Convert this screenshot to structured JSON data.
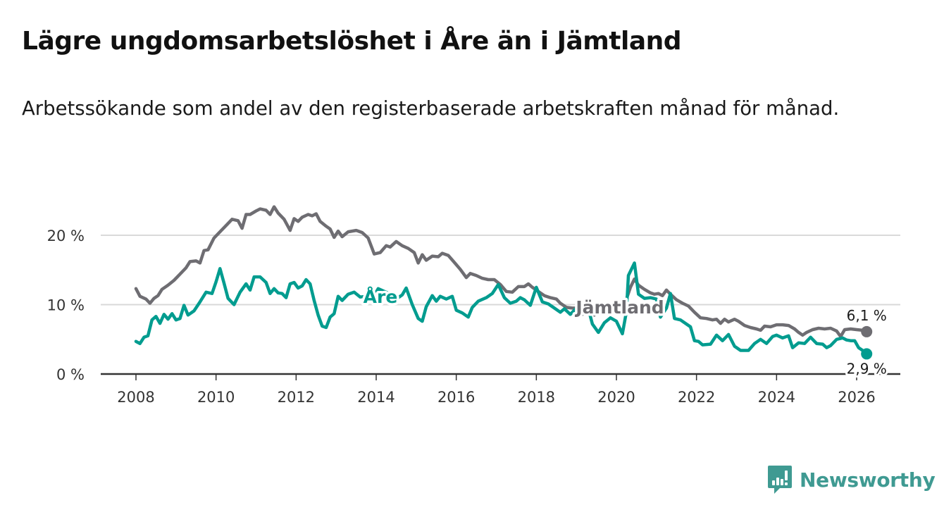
{
  "header": {
    "title": "Lägre ungdomsarbetslöshet i Åre än i Jämtland",
    "subtitle": "Arbetssökande som andel av den registerbaserade arbetskraften månad för månad."
  },
  "brand": {
    "name": "Newsworthy",
    "color": "#3f9a92"
  },
  "chart_data": {
    "type": "line",
    "title": "Lägre ungdomsarbetslöshet i Åre än i Jämtland",
    "subtitle": "Arbetssökande som andel av den registerbaserade arbetskraften månad för månad.",
    "xlabel": "",
    "ylabel": "",
    "xlim": [
      2007.75,
      2026.95
    ],
    "ylim": [
      0,
      25
    ],
    "x_ticks": [
      2008,
      2010,
      2012,
      2014,
      2016,
      2018,
      2020,
      2022,
      2024,
      2026
    ],
    "x_tick_labels": [
      "2008",
      "2010",
      "2012",
      "2014",
      "2016",
      "2018",
      "2020",
      "2022",
      "2024",
      "2026"
    ],
    "y_ticks": [
      0,
      10,
      20
    ],
    "y_tick_labels": [
      "0 %",
      "10 %",
      "20 %"
    ],
    "grid": "horizontal",
    "legend": "inline labels",
    "series": [
      {
        "name": "Jämtland",
        "label": "Jämtland",
        "color": "#6e6d72",
        "end_label": "6,1 %",
        "end_value": 6.1,
        "points": [
          [
            2008.0,
            12.3
          ],
          [
            2008.1,
            11.2
          ],
          [
            2008.25,
            10.8
          ],
          [
            2008.35,
            10.2
          ],
          [
            2008.45,
            10.9
          ],
          [
            2008.55,
            11.3
          ],
          [
            2008.65,
            12.2
          ],
          [
            2008.8,
            12.8
          ],
          [
            2008.95,
            13.5
          ],
          [
            2009.1,
            14.4
          ],
          [
            2009.25,
            15.3
          ],
          [
            2009.35,
            16.2
          ],
          [
            2009.5,
            16.3
          ],
          [
            2009.6,
            16.0
          ],
          [
            2009.7,
            17.8
          ],
          [
            2009.8,
            17.9
          ],
          [
            2009.95,
            19.6
          ],
          [
            2010.1,
            20.5
          ],
          [
            2010.25,
            21.4
          ],
          [
            2010.4,
            22.3
          ],
          [
            2010.55,
            22.1
          ],
          [
            2010.65,
            21.0
          ],
          [
            2010.75,
            23.0
          ],
          [
            2010.85,
            23.0
          ],
          [
            2011.0,
            23.5
          ],
          [
            2011.1,
            23.8
          ],
          [
            2011.25,
            23.6
          ],
          [
            2011.35,
            23.0
          ],
          [
            2011.45,
            24.1
          ],
          [
            2011.55,
            23.2
          ],
          [
            2011.7,
            22.3
          ],
          [
            2011.85,
            20.7
          ],
          [
            2011.95,
            22.4
          ],
          [
            2012.05,
            22.0
          ],
          [
            2012.15,
            22.6
          ],
          [
            2012.3,
            23.0
          ],
          [
            2012.4,
            22.8
          ],
          [
            2012.5,
            23.1
          ],
          [
            2012.6,
            22.0
          ],
          [
            2012.75,
            21.3
          ],
          [
            2012.85,
            20.9
          ],
          [
            2012.95,
            19.7
          ],
          [
            2013.05,
            20.6
          ],
          [
            2013.15,
            19.8
          ],
          [
            2013.3,
            20.5
          ],
          [
            2013.5,
            20.7
          ],
          [
            2013.65,
            20.4
          ],
          [
            2013.8,
            19.6
          ],
          [
            2013.95,
            17.3
          ],
          [
            2014.1,
            17.5
          ],
          [
            2014.25,
            18.5
          ],
          [
            2014.35,
            18.3
          ],
          [
            2014.5,
            19.1
          ],
          [
            2014.65,
            18.5
          ],
          [
            2014.8,
            18.1
          ],
          [
            2014.95,
            17.5
          ],
          [
            2015.05,
            16.0
          ],
          [
            2015.15,
            17.2
          ],
          [
            2015.25,
            16.4
          ],
          [
            2015.4,
            17.0
          ],
          [
            2015.55,
            16.9
          ],
          [
            2015.65,
            17.4
          ],
          [
            2015.8,
            17.1
          ],
          [
            2015.95,
            16.1
          ],
          [
            2016.1,
            15.1
          ],
          [
            2016.25,
            13.9
          ],
          [
            2016.35,
            14.5
          ],
          [
            2016.5,
            14.2
          ],
          [
            2016.65,
            13.8
          ],
          [
            2016.8,
            13.6
          ],
          [
            2016.95,
            13.6
          ],
          [
            2017.1,
            12.9
          ],
          [
            2017.25,
            11.9
          ],
          [
            2017.4,
            11.8
          ],
          [
            2017.55,
            12.6
          ],
          [
            2017.7,
            12.6
          ],
          [
            2017.8,
            13.0
          ],
          [
            2017.9,
            12.5
          ],
          [
            2018.05,
            11.9
          ],
          [
            2018.2,
            11.3
          ],
          [
            2018.35,
            11.0
          ],
          [
            2018.5,
            10.8
          ],
          [
            2018.6,
            10.2
          ],
          [
            2018.75,
            9.6
          ],
          [
            2018.9,
            9.5
          ],
          [
            2019.05,
            9.5
          ],
          [
            2019.15,
            8.6
          ],
          [
            2019.3,
            9.2
          ],
          [
            2019.45,
            8.5
          ],
          [
            2019.55,
            9.0
          ],
          [
            2019.7,
            9.2
          ],
          [
            2019.85,
            8.7
          ],
          [
            2020.0,
            9.3
          ],
          [
            2020.15,
            10.3
          ],
          [
            2020.25,
            10.8
          ],
          [
            2020.35,
            12.5
          ],
          [
            2020.45,
            13.7
          ],
          [
            2020.55,
            12.8
          ],
          [
            2020.7,
            12.2
          ],
          [
            2020.85,
            11.7
          ],
          [
            2020.95,
            11.5
          ],
          [
            2021.05,
            11.6
          ],
          [
            2021.15,
            11.3
          ],
          [
            2021.25,
            12.1
          ],
          [
            2021.35,
            11.5
          ],
          [
            2021.5,
            10.7
          ],
          [
            2021.65,
            10.2
          ],
          [
            2021.8,
            9.8
          ],
          [
            2021.95,
            8.9
          ],
          [
            2022.1,
            8.1
          ],
          [
            2022.25,
            8.0
          ],
          [
            2022.4,
            7.8
          ],
          [
            2022.5,
            7.9
          ],
          [
            2022.6,
            7.3
          ],
          [
            2022.7,
            7.9
          ],
          [
            2022.8,
            7.5
          ],
          [
            2022.95,
            7.9
          ],
          [
            2023.05,
            7.6
          ],
          [
            2023.2,
            7.0
          ],
          [
            2023.35,
            6.7
          ],
          [
            2023.5,
            6.5
          ],
          [
            2023.6,
            6.3
          ],
          [
            2023.7,
            6.9
          ],
          [
            2023.85,
            6.8
          ],
          [
            2024.0,
            7.1
          ],
          [
            2024.15,
            7.1
          ],
          [
            2024.3,
            7.0
          ],
          [
            2024.45,
            6.5
          ],
          [
            2024.55,
            6.0
          ],
          [
            2024.65,
            5.6
          ],
          [
            2024.75,
            6.0
          ],
          [
            2024.9,
            6.4
          ],
          [
            2025.05,
            6.6
          ],
          [
            2025.2,
            6.5
          ],
          [
            2025.35,
            6.6
          ],
          [
            2025.5,
            6.2
          ],
          [
            2025.6,
            5.4
          ],
          [
            2025.7,
            6.4
          ],
          [
            2025.85,
            6.5
          ],
          [
            2026.0,
            6.4
          ],
          [
            2026.15,
            6.3
          ],
          [
            2026.25,
            6.1
          ]
        ]
      },
      {
        "name": "Åre",
        "label": "Åre",
        "color": "#009c8f",
        "end_label": "2,9 %",
        "end_value": 2.9,
        "points": [
          [
            2008.0,
            4.7
          ],
          [
            2008.1,
            4.4
          ],
          [
            2008.2,
            5.3
          ],
          [
            2008.3,
            5.5
          ],
          [
            2008.4,
            7.8
          ],
          [
            2008.5,
            8.3
          ],
          [
            2008.6,
            7.3
          ],
          [
            2008.7,
            8.6
          ],
          [
            2008.8,
            7.9
          ],
          [
            2008.9,
            8.7
          ],
          [
            2009.0,
            7.8
          ],
          [
            2009.1,
            8.0
          ],
          [
            2009.2,
            9.9
          ],
          [
            2009.3,
            8.5
          ],
          [
            2009.45,
            9.1
          ],
          [
            2009.6,
            10.4
          ],
          [
            2009.75,
            11.8
          ],
          [
            2009.9,
            11.6
          ],
          [
            2010.0,
            13.3
          ],
          [
            2010.1,
            15.2
          ],
          [
            2010.2,
            13.1
          ],
          [
            2010.3,
            10.9
          ],
          [
            2010.45,
            10.0
          ],
          [
            2010.6,
            11.8
          ],
          [
            2010.75,
            13.0
          ],
          [
            2010.85,
            12.1
          ],
          [
            2010.95,
            14.0
          ],
          [
            2011.1,
            14.0
          ],
          [
            2011.25,
            13.2
          ],
          [
            2011.35,
            11.6
          ],
          [
            2011.45,
            12.3
          ],
          [
            2011.55,
            11.7
          ],
          [
            2011.65,
            11.6
          ],
          [
            2011.75,
            11.0
          ],
          [
            2011.85,
            13.0
          ],
          [
            2011.95,
            13.2
          ],
          [
            2012.05,
            12.4
          ],
          [
            2012.15,
            12.7
          ],
          [
            2012.25,
            13.6
          ],
          [
            2012.35,
            13.0
          ],
          [
            2012.45,
            10.6
          ],
          [
            2012.55,
            8.5
          ],
          [
            2012.65,
            6.9
          ],
          [
            2012.75,
            6.7
          ],
          [
            2012.85,
            8.2
          ],
          [
            2012.95,
            8.7
          ],
          [
            2013.05,
            11.2
          ],
          [
            2013.15,
            10.6
          ],
          [
            2013.3,
            11.5
          ],
          [
            2013.45,
            11.8
          ],
          [
            2013.6,
            11.1
          ],
          [
            2013.75,
            11.2
          ],
          [
            2013.85,
            11.0
          ],
          [
            2013.95,
            11.3
          ],
          [
            2014.05,
            12.3
          ],
          [
            2014.55,
            11.0
          ],
          [
            2014.65,
            11.4
          ],
          [
            2014.75,
            12.4
          ],
          [
            2014.9,
            10.0
          ],
          [
            2015.05,
            8.0
          ],
          [
            2015.15,
            7.6
          ],
          [
            2015.25,
            9.7
          ],
          [
            2015.4,
            11.3
          ],
          [
            2015.5,
            10.5
          ],
          [
            2015.6,
            11.2
          ],
          [
            2015.75,
            10.8
          ],
          [
            2015.9,
            11.2
          ],
          [
            2016.0,
            9.2
          ],
          [
            2016.15,
            8.8
          ],
          [
            2016.3,
            8.2
          ],
          [
            2016.4,
            9.6
          ],
          [
            2016.55,
            10.5
          ],
          [
            2016.75,
            11.0
          ],
          [
            2016.9,
            11.6
          ],
          [
            2017.05,
            12.9
          ],
          [
            2017.2,
            11.0
          ],
          [
            2017.35,
            10.2
          ],
          [
            2017.5,
            10.5
          ],
          [
            2017.6,
            11.0
          ],
          [
            2017.7,
            10.7
          ],
          [
            2017.85,
            9.9
          ],
          [
            2018.0,
            12.5
          ],
          [
            2018.15,
            10.4
          ],
          [
            2018.3,
            10.1
          ],
          [
            2018.45,
            9.5
          ],
          [
            2018.6,
            8.9
          ],
          [
            2018.7,
            9.4
          ],
          [
            2018.85,
            8.6
          ],
          [
            2019.0,
            9.5
          ],
          [
            2019.15,
            8.7
          ],
          [
            2019.3,
            9.4
          ],
          [
            2019.4,
            7.2
          ],
          [
            2019.55,
            6.0
          ],
          [
            2019.7,
            7.4
          ],
          [
            2019.85,
            8.1
          ],
          [
            2020.0,
            7.6
          ],
          [
            2020.15,
            5.8
          ],
          [
            2020.25,
            9.0
          ],
          [
            2020.3,
            14.2
          ],
          [
            2020.45,
            16.0
          ],
          [
            2020.55,
            11.5
          ],
          [
            2020.7,
            10.9
          ],
          [
            2020.85,
            11.0
          ],
          [
            2021.0,
            10.8
          ],
          [
            2021.1,
            8.2
          ],
          [
            2021.25,
            9.5
          ],
          [
            2021.35,
            11.6
          ],
          [
            2021.45,
            8.0
          ],
          [
            2021.6,
            7.8
          ],
          [
            2021.75,
            7.2
          ],
          [
            2021.85,
            6.8
          ],
          [
            2021.95,
            4.8
          ],
          [
            2022.05,
            4.7
          ],
          [
            2022.15,
            4.2
          ],
          [
            2022.35,
            4.3
          ],
          [
            2022.5,
            5.6
          ],
          [
            2022.65,
            4.8
          ],
          [
            2022.8,
            5.7
          ],
          [
            2022.95,
            4.0
          ],
          [
            2023.1,
            3.4
          ],
          [
            2023.3,
            3.4
          ],
          [
            2023.45,
            4.4
          ],
          [
            2023.6,
            5.0
          ],
          [
            2023.75,
            4.4
          ],
          [
            2023.9,
            5.4
          ],
          [
            2024.0,
            5.6
          ],
          [
            2024.15,
            5.2
          ],
          [
            2024.3,
            5.5
          ],
          [
            2024.4,
            3.8
          ],
          [
            2024.55,
            4.5
          ],
          [
            2024.7,
            4.4
          ],
          [
            2024.85,
            5.3
          ],
          [
            2025.0,
            4.4
          ],
          [
            2025.15,
            4.3
          ],
          [
            2025.25,
            3.8
          ],
          [
            2025.35,
            4.1
          ],
          [
            2025.5,
            5.0
          ],
          [
            2025.65,
            5.2
          ],
          [
            2025.75,
            4.9
          ],
          [
            2025.85,
            4.8
          ],
          [
            2025.95,
            4.8
          ],
          [
            2026.05,
            3.8
          ],
          [
            2026.2,
            3.2
          ],
          [
            2026.25,
            2.9
          ]
        ]
      }
    ]
  }
}
